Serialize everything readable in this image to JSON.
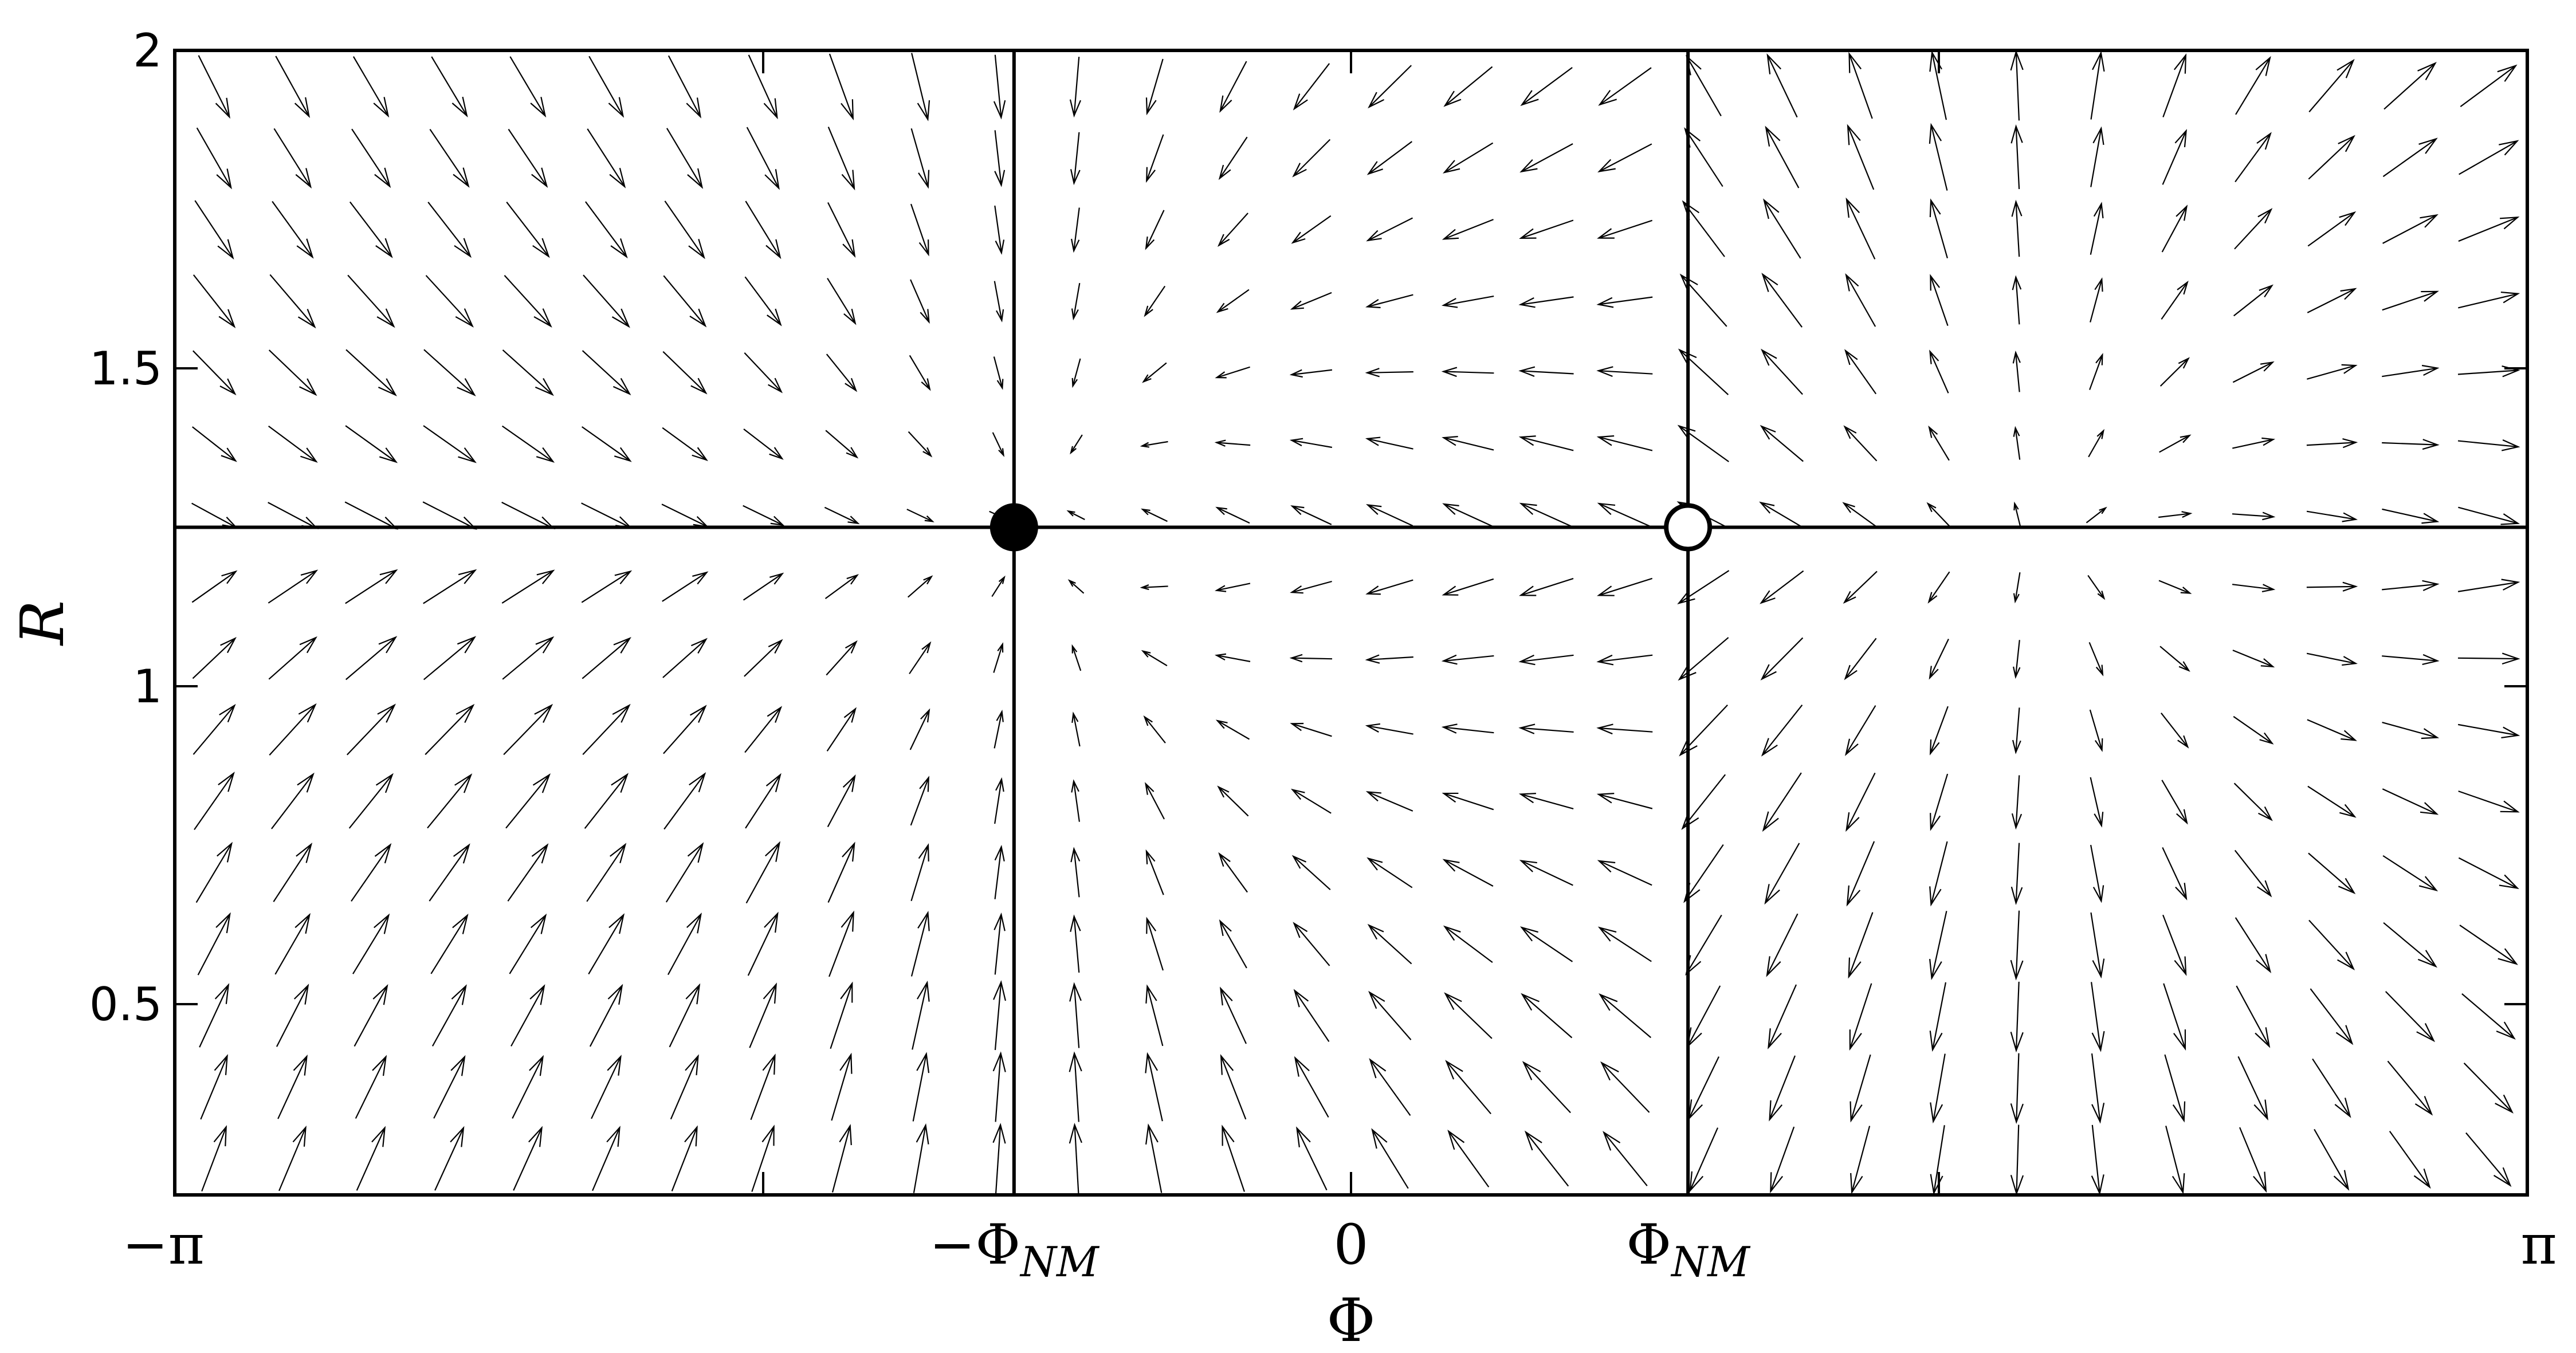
{
  "chart_data": {
    "type": "vector-field",
    "xlabel": "Φ",
    "ylabel": "R",
    "xlim": [
      -3.14159,
      3.14159
    ],
    "ylim": [
      0.2,
      2.0
    ],
    "x_ticks": [
      {
        "value": -3.14159,
        "label": "−π"
      },
      {
        "value": -0.9,
        "label": "−Φ",
        "sub": "NM"
      },
      {
        "value": 0,
        "label": "0"
      },
      {
        "value": 0.9,
        "label": "Φ",
        "sub": "NM"
      },
      {
        "value": 3.14159,
        "label": "π"
      }
    ],
    "y_ticks": [
      {
        "value": 0.5,
        "label": "0.5"
      },
      {
        "value": 1,
        "label": "1"
      },
      {
        "value": 1.5,
        "label": "1.5"
      },
      {
        "value": 2,
        "label": "2"
      }
    ],
    "minor_x_ticks": [
      -1.57,
      1.57
    ],
    "nullclines": {
      "vertical_x": [
        -0.9,
        0.9
      ],
      "horizontal_y": [
        1.25
      ]
    },
    "fixed_points": [
      {
        "x": -0.9,
        "y": 1.25,
        "type": "stable",
        "fill": "#000000"
      },
      {
        "x": 0.9,
        "y": 1.25,
        "type": "unstable",
        "fill": "#ffffff"
      }
    ],
    "field_grid": {
      "nx": 30,
      "ny": 16
    },
    "colors": {
      "axes": "#000000",
      "arrows": "#000000",
      "background": "#ffffff"
    }
  }
}
